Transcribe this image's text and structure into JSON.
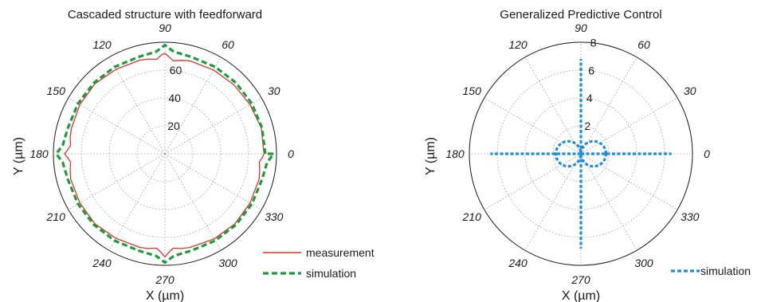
{
  "chart_data": [
    {
      "type": "polar-line",
      "title": "Cascaded structure with feedforward",
      "xlabel": "X (µm)",
      "ylabel": "Y (µm)",
      "rlim": [
        0,
        80
      ],
      "radial_ticks": [
        20,
        40,
        60
      ],
      "angle_ticks": [
        "0",
        "30",
        "60",
        "90",
        "120",
        "150",
        "180",
        "210",
        "240",
        "270",
        "300",
        "330"
      ],
      "grid": true,
      "legend_position": "bottom-right",
      "series": [
        {
          "name": "measurement",
          "color": "#d9342b",
          "style": "solid",
          "theta": [
            0,
            15,
            30,
            45,
            60,
            75,
            80,
            85,
            88,
            90,
            92,
            95,
            100,
            105,
            120,
            135,
            150,
            165,
            170,
            175,
            178,
            180,
            182,
            185,
            190,
            195,
            210,
            225,
            240,
            255,
            260,
            265,
            268,
            270,
            272,
            275,
            280,
            285,
            300,
            315,
            330,
            345,
            350,
            355,
            358,
            360
          ],
          "r": [
            71,
            71.5,
            70.5,
            70,
            69.5,
            69,
            68,
            67,
            70,
            72,
            71,
            68,
            69,
            69.5,
            70,
            71,
            70.5,
            69.5,
            69,
            68,
            70,
            72,
            70,
            68,
            69,
            70,
            70.5,
            71,
            70,
            69.5,
            69,
            68,
            71,
            74,
            71,
            68,
            69,
            69.5,
            70.5,
            71,
            70.5,
            70,
            69,
            68,
            70,
            71
          ]
        },
        {
          "name": "simulation",
          "color": "#1c9a3c",
          "style": "dashed",
          "theta": [
            0,
            15,
            30,
            45,
            60,
            75,
            80,
            85,
            88,
            90,
            92,
            95,
            100,
            105,
            120,
            135,
            150,
            165,
            170,
            175,
            178,
            180,
            182,
            185,
            190,
            195,
            210,
            225,
            240,
            255,
            260,
            265,
            268,
            270,
            272,
            275,
            280,
            285,
            300,
            315,
            330,
            345,
            350,
            355,
            358,
            360
          ],
          "r": [
            72,
            72,
            72,
            72,
            72,
            72,
            72.5,
            73.5,
            76,
            78,
            76,
            73.5,
            72.5,
            72,
            72,
            72,
            72,
            72,
            72.5,
            73.5,
            76,
            78,
            76,
            73.5,
            72.5,
            72,
            72,
            72,
            72,
            72,
            72.5,
            73.5,
            76,
            78,
            76,
            73.5,
            72.5,
            72,
            72,
            72,
            72,
            72,
            72.5,
            73.5,
            76,
            78
          ]
        }
      ]
    },
    {
      "type": "polar-line",
      "title": "Generalized Predictive Control",
      "xlabel": "X (µm)",
      "ylabel": "Y (µm)",
      "rlim": [
        0,
        8
      ],
      "radial_ticks": [
        2,
        4,
        6,
        8
      ],
      "angle_ticks": [
        "0",
        "30",
        "60",
        "90",
        "120",
        "150",
        "180",
        "210",
        "240",
        "270",
        "300",
        "330"
      ],
      "grid": true,
      "legend_position": "bottom-right",
      "series": [
        {
          "name": "simulation",
          "color": "#1e8fd6",
          "style": "dashed",
          "lobe_peak_r": 1.8,
          "spokes": [
            {
              "theta": 0,
              "r": 6.5
            },
            {
              "theta": 90,
              "r": 6.8
            },
            {
              "theta": 180,
              "r": 6.5
            },
            {
              "theta": 270,
              "r": 6.8
            }
          ]
        }
      ]
    }
  ]
}
